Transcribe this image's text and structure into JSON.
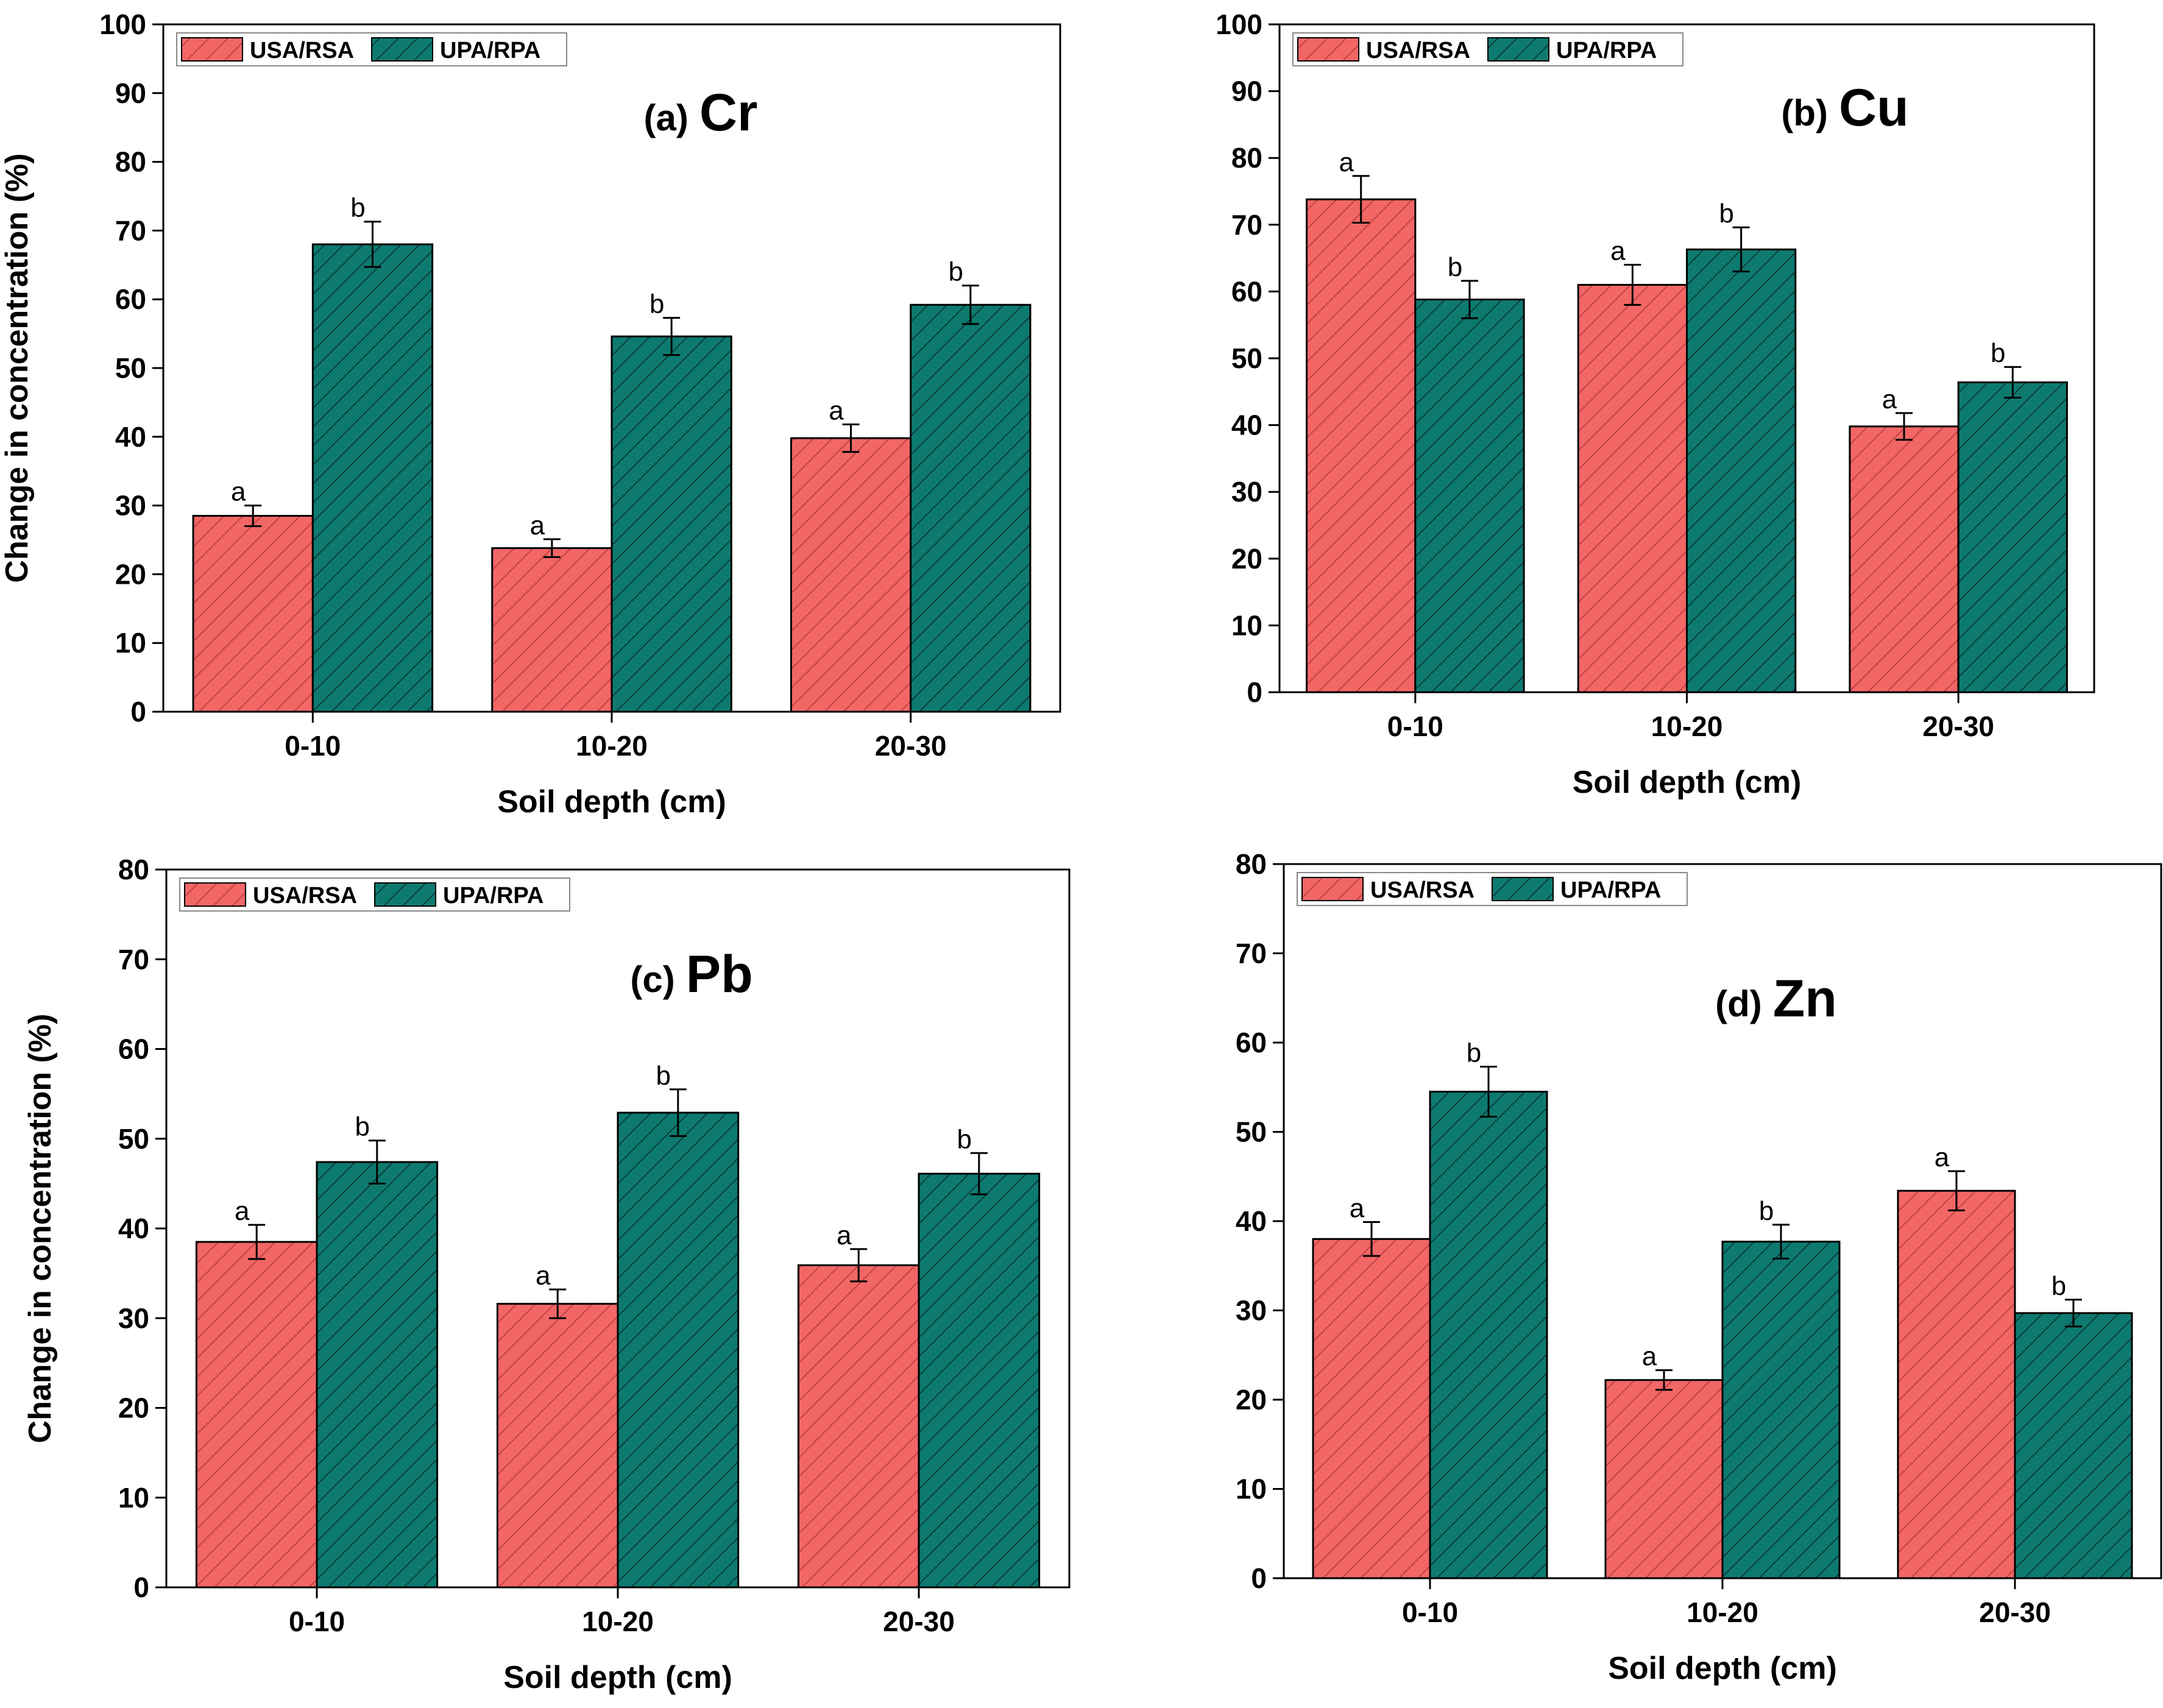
{
  "legend_labels": [
    "USA/RSA",
    "UPA/RPA"
  ],
  "colors": {
    "usa_rsa": "#f26666",
    "upa_rpa": "#0e7a6f",
    "axis": "#000000"
  },
  "chart_data": [
    {
      "type": "bar",
      "panel_label": "(a)",
      "element": "Cr",
      "title": "(a) Cr",
      "xlabel": "Soil depth (cm)",
      "ylabel": "Change in concentration (%)",
      "categories": [
        "0-10",
        "10-20",
        "20-30"
      ],
      "ylim": [
        0,
        100
      ],
      "yticks": [
        0,
        10,
        20,
        30,
        40,
        50,
        60,
        70,
        80,
        90,
        100
      ],
      "legend_position": "top-left",
      "series": [
        {
          "name": "USA/RSA",
          "values": [
            28.5,
            23.8,
            39.8
          ],
          "errors": [
            1.5,
            1.3,
            2.0
          ],
          "letters": [
            "a",
            "a",
            "a"
          ]
        },
        {
          "name": "UPA/RPA",
          "values": [
            68.0,
            54.6,
            59.2
          ],
          "errors": [
            3.3,
            2.7,
            2.8
          ],
          "letters": [
            "b",
            "b",
            "b"
          ]
        }
      ]
    },
    {
      "type": "bar",
      "panel_label": "(b)",
      "element": "Cu",
      "title": "(b) Cu",
      "xlabel": "Soil depth (cm)",
      "ylabel": "",
      "categories": [
        "0-10",
        "10-20",
        "20-30"
      ],
      "ylim": [
        0,
        100
      ],
      "yticks": [
        0,
        10,
        20,
        30,
        40,
        50,
        60,
        70,
        80,
        90,
        100
      ],
      "legend_position": "top-left",
      "series": [
        {
          "name": "USA/RSA",
          "values": [
            73.8,
            61.0,
            39.8
          ],
          "errors": [
            3.5,
            3.0,
            2.0
          ],
          "letters": [
            "a",
            "a",
            "a"
          ]
        },
        {
          "name": "UPA/RPA",
          "values": [
            58.8,
            66.3,
            46.4
          ],
          "errors": [
            2.8,
            3.3,
            2.3
          ],
          "letters": [
            "b",
            "b",
            "b"
          ]
        }
      ]
    },
    {
      "type": "bar",
      "panel_label": "(c)",
      "element": "Pb",
      "title": "(c) Pb",
      "xlabel": "Soil depth (cm)",
      "ylabel": "Change in concentration (%)",
      "categories": [
        "0-10",
        "10-20",
        "20-30"
      ],
      "ylim": [
        0,
        80
      ],
      "yticks": [
        0,
        10,
        20,
        30,
        40,
        50,
        60,
        70,
        80
      ],
      "legend_position": "top-left",
      "series": [
        {
          "name": "USA/RSA",
          "values": [
            38.5,
            31.6,
            35.9
          ],
          "errors": [
            1.9,
            1.6,
            1.8
          ],
          "letters": [
            "a",
            "a",
            "a"
          ]
        },
        {
          "name": "UPA/RPA",
          "values": [
            47.4,
            52.9,
            46.1
          ],
          "errors": [
            2.4,
            2.6,
            2.3
          ],
          "letters": [
            "b",
            "b",
            "b"
          ]
        }
      ]
    },
    {
      "type": "bar",
      "panel_label": "(d)",
      "element": "Zn",
      "title": "(d) Zn",
      "xlabel": "Soil depth (cm)",
      "ylabel": "",
      "categories": [
        "0-10",
        "10-20",
        "20-30"
      ],
      "ylim": [
        0,
        80
      ],
      "yticks": [
        0,
        10,
        20,
        30,
        40,
        50,
        60,
        70,
        80
      ],
      "legend_position": "top-left",
      "series": [
        {
          "name": "USA/RSA",
          "values": [
            38.0,
            22.2,
            43.4
          ],
          "errors": [
            1.9,
            1.1,
            2.2
          ],
          "letters": [
            "a",
            "a",
            "a"
          ]
        },
        {
          "name": "UPA/RPA",
          "values": [
            54.5,
            37.7,
            29.7
          ],
          "errors": [
            2.8,
            1.9,
            1.5
          ],
          "letters": [
            "b",
            "b",
            "b"
          ]
        }
      ]
    }
  ]
}
